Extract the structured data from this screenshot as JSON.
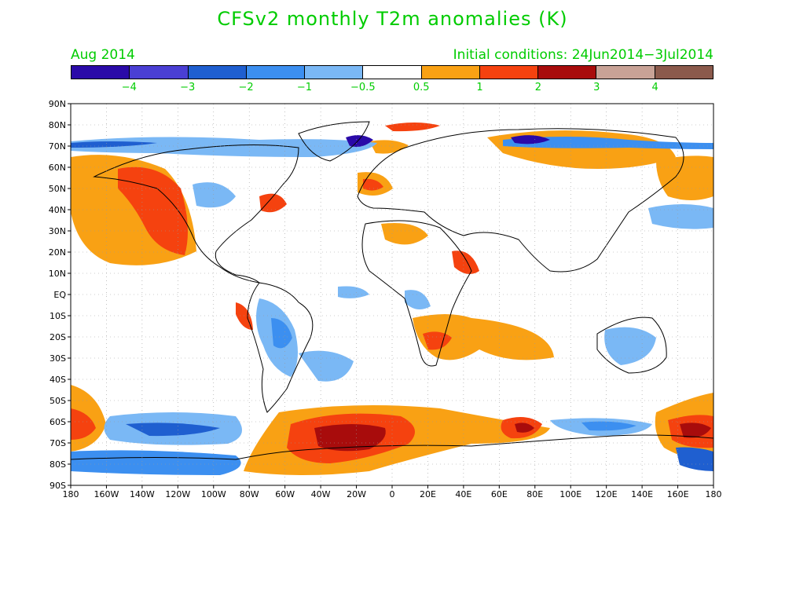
{
  "title": "CFSv2 monthly T2m anomalies (K)",
  "valid_month": "Aug 2014",
  "initial_conditions": "Initial conditions: 24Jun2014−3Jul2014",
  "colorbar": {
    "colors": [
      "#2a0aa8",
      "#4a3fd4",
      "#1f5fd0",
      "#3c8ff0",
      "#7ab8f5",
      "#ffffff",
      "#f9a114",
      "#f5420f",
      "#a80c0c",
      "#c8a296",
      "#8b5a4c"
    ],
    "labels": [
      "−4",
      "−3",
      "−2",
      "−1",
      "−0.5",
      "0.5",
      "1",
      "2",
      "3",
      "4"
    ]
  },
  "map": {
    "lat_labels": [
      "90N",
      "80N",
      "70N",
      "60N",
      "50N",
      "40N",
      "30N",
      "20N",
      "10N",
      "EQ",
      "10S",
      "20S",
      "30S",
      "40S",
      "50S",
      "60S",
      "70S",
      "80S",
      "90S"
    ],
    "lon_labels": [
      "180",
      "160W",
      "140W",
      "120W",
      "100W",
      "80W",
      "60W",
      "40W",
      "20W",
      "0",
      "20E",
      "40E",
      "60E",
      "80E",
      "100E",
      "120E",
      "140E",
      "160E",
      "180"
    ]
  }
}
